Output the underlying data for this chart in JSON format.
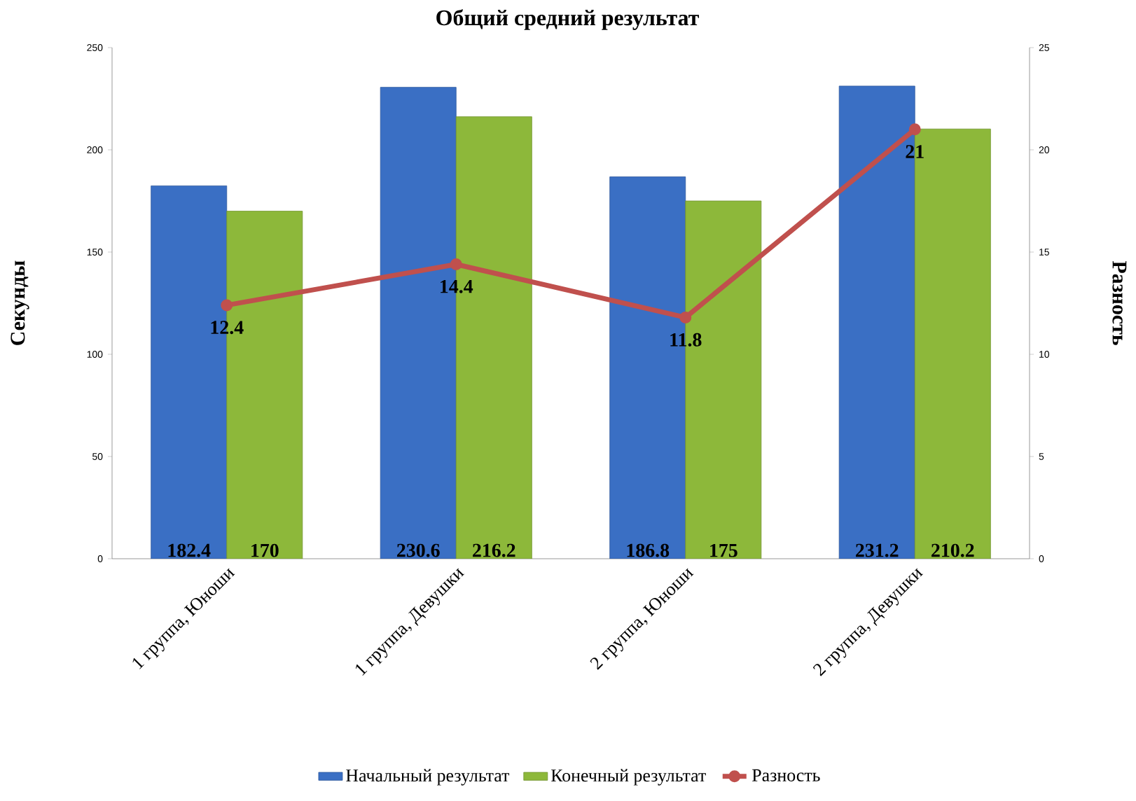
{
  "chart_data": {
    "type": "bar",
    "title": "Общий средний результат",
    "ylabel": "Секунды",
    "y2label": "Разность",
    "categories": [
      "1 группа, Юноши",
      "1 группа, Девушки",
      "2 группа, Юноши",
      "2 группа, Девушки"
    ],
    "series": [
      {
        "name": "Начальный результат",
        "color": "#3a6fc4",
        "values": [
          182.4,
          230.6,
          186.8,
          231.2
        ]
      },
      {
        "name": "Конечный результат",
        "color": "#8db83a",
        "values": [
          170,
          216.2,
          175,
          210.2
        ]
      },
      {
        "name": "Разность",
        "type": "line",
        "axis": "y2",
        "color": "#c0504d",
        "marker": "circle",
        "values": [
          12.4,
          14.4,
          11.8,
          21
        ]
      }
    ],
    "ylim": [
      0,
      250
    ],
    "yticks": [
      0,
      50,
      100,
      150,
      200,
      250
    ],
    "y2lim": [
      0,
      25
    ],
    "y2ticks": [
      0,
      5,
      10,
      15,
      20,
      25
    ],
    "data_labels": true,
    "legend": "bottom",
    "grid": false
  }
}
